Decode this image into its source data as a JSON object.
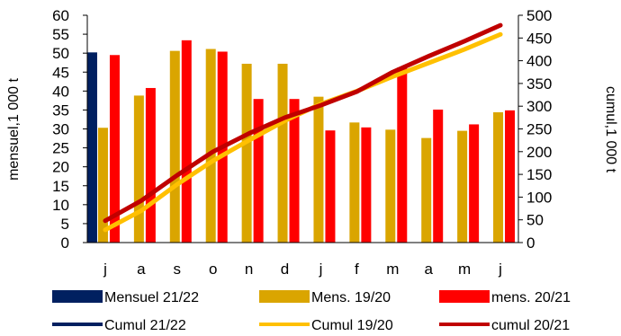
{
  "chart_data": {
    "type": "bar",
    "categories": [
      "j",
      "a",
      "s",
      "o",
      "n",
      "d",
      "j",
      "f",
      "m",
      "a",
      "m",
      "j"
    ],
    "y_left": {
      "label": "mensuel,1 000 t",
      "min": 0,
      "max": 60,
      "step": 5
    },
    "y_right": {
      "label": "cumul,1 000 t",
      "min": 0,
      "max": 500,
      "step": 50
    },
    "bar_series": [
      {
        "name": "Mensuel 21/22",
        "color": "#002060",
        "values": [
          50.2,
          null,
          null,
          null,
          null,
          null,
          null,
          null,
          null,
          null,
          null,
          null
        ]
      },
      {
        "name": "Mens. 19/20",
        "color": "#DAA500",
        "values": [
          30.3,
          38.8,
          50.6,
          51.1,
          47.2,
          47.2,
          38.5,
          31.7,
          29.8,
          27.6,
          29.5,
          34.4
        ]
      },
      {
        "name": "mens. 20/21",
        "color": "#FF0000",
        "values": [
          49.5,
          40.8,
          53.4,
          50.4,
          37.9,
          37.9,
          29.6,
          30.4,
          46.2,
          35.1,
          31.2,
          34.9
        ]
      }
    ],
    "line_series": [
      {
        "name": "Cumul 21/22",
        "color": "#002060",
        "values": []
      },
      {
        "name": "Cumul 19/20",
        "color": "#FFC000",
        "values": [
          28,
          70,
          128,
          180,
          225,
          268,
          305,
          333,
          365,
          395,
          425,
          458
        ]
      },
      {
        "name": "cumul 20/21",
        "color": "#C00000",
        "values": [
          48,
          92,
          148,
          200,
          240,
          275,
          302,
          332,
          375,
          410,
          443,
          478
        ]
      }
    ],
    "legend": {
      "position": "bottom",
      "rows": [
        [
          {
            "label": "Mensuel 21/22",
            "kind": "bar",
            "color": "#002060"
          },
          {
            "label": "Mens. 19/20",
            "kind": "bar",
            "color": "#DAA500"
          },
          {
            "label": "mens. 20/21",
            "kind": "bar",
            "color": "#FF0000"
          }
        ],
        [
          {
            "label": "Cumul 21/22",
            "kind": "line",
            "color": "#002060"
          },
          {
            "label": "Cumul 19/20",
            "kind": "line",
            "color": "#FFC000"
          },
          {
            "label": "cumul 20/21",
            "kind": "line",
            "color": "#C00000"
          }
        ]
      ]
    },
    "grid": false
  }
}
